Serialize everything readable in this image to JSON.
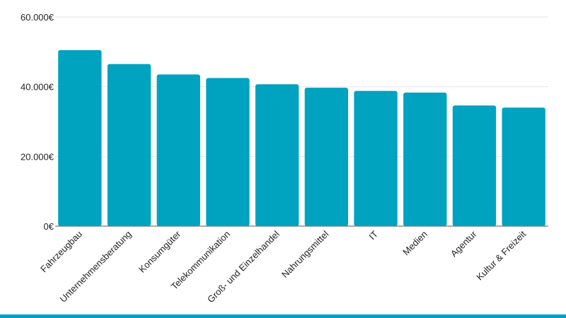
{
  "chart_data": {
    "type": "bar",
    "categories": [
      "Fahrzeugbau",
      "Unternehmensberatung",
      "Konsumgüter",
      "Telekommunikation",
      "Groß- und Einzelhandel",
      "Nahrungsmittel",
      "IT",
      "Medien",
      "Agentur",
      "Kultur & Freizeit"
    ],
    "values": [
      50500,
      46500,
      43500,
      42500,
      40700,
      39700,
      38800,
      38300,
      34600,
      34000
    ],
    "ylim": [
      0,
      60000
    ],
    "yticks": [
      0,
      20000,
      40000,
      60000
    ],
    "ytick_labels": [
      "0€",
      "20.000€",
      "40.000€",
      "60.000€"
    ],
    "grid": true,
    "legend": "none",
    "title": "",
    "xlabel": "",
    "ylabel": ""
  },
  "colors": {
    "bar": "#00a3bf",
    "bottom_bar": "#00a3bf"
  }
}
